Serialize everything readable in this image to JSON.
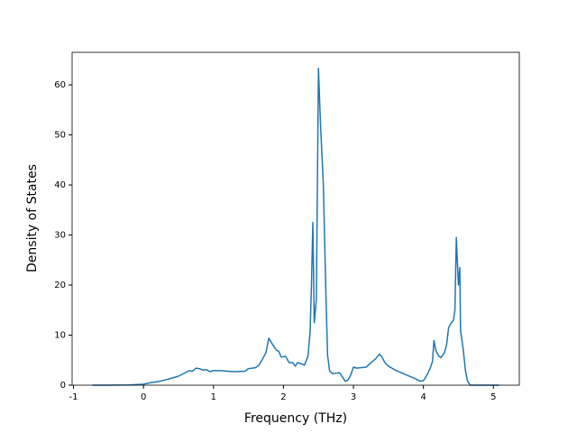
{
  "chart_data": {
    "type": "line",
    "x_label": "Frequency (THz)",
    "y_label": "Density of States",
    "xlim": [
      -1.02,
      5.37
    ],
    "ylim": [
      0,
      66.5
    ],
    "xticks": [
      -1,
      0,
      1,
      2,
      3,
      4,
      5
    ],
    "yticks": [
      0,
      10,
      20,
      30,
      40,
      50,
      60
    ],
    "grid": false,
    "series": [
      {
        "color": "#1f77b4",
        "x": [
          -0.73,
          -0.5,
          -0.2,
          0,
          0.1,
          0.2,
          0.3,
          0.4,
          0.5,
          0.6,
          0.65,
          0.7,
          0.75,
          0.8,
          0.85,
          0.9,
          0.95,
          1.0,
          1.1,
          1.2,
          1.3,
          1.45,
          1.5,
          1.6,
          1.65,
          1.7,
          1.75,
          1.79,
          1.85,
          1.9,
          1.93,
          1.97,
          2.03,
          2.08,
          2.13,
          2.17,
          2.2,
          2.25,
          2.3,
          2.35,
          2.38,
          2.4,
          2.42,
          2.44,
          2.47,
          2.5,
          2.53,
          2.57,
          2.6,
          2.63,
          2.66,
          2.7,
          2.75,
          2.8,
          2.85,
          2.88,
          2.92,
          2.96,
          3.0,
          3.05,
          3.1,
          3.18,
          3.25,
          3.32,
          3.37,
          3.4,
          3.45,
          3.5,
          3.6,
          3.7,
          3.8,
          3.9,
          3.95,
          4.0,
          4.05,
          4.1,
          4.13,
          4.15,
          4.18,
          4.22,
          4.25,
          4.3,
          4.33,
          4.36,
          4.4,
          4.43,
          4.45,
          4.47,
          4.5,
          4.52,
          4.53,
          4.57,
          4.6,
          4.63,
          4.67,
          5.08
        ],
        "values": [
          0,
          0,
          0.05,
          0.2,
          0.5,
          0.7,
          1.0,
          1.4,
          1.8,
          2.5,
          2.9,
          2.8,
          3.4,
          3.3,
          3.0,
          3.1,
          2.7,
          2.9,
          2.9,
          2.8,
          2.7,
          2.8,
          3.3,
          3.5,
          4.0,
          5.2,
          6.5,
          9.4,
          8.0,
          7.0,
          6.8,
          5.6,
          5.8,
          4.5,
          4.5,
          3.8,
          4.5,
          4.3,
          4.0,
          5.8,
          10.5,
          20,
          32.5,
          12.5,
          17,
          63.3,
          52,
          40,
          22,
          6,
          2.8,
          2.3,
          2.4,
          2.5,
          1.5,
          0.8,
          1.0,
          2.0,
          3.6,
          3.4,
          3.5,
          3.6,
          4.5,
          5.3,
          6.2,
          5.8,
          4.5,
          3.8,
          3.0,
          2.4,
          1.8,
          1.2,
          0.8,
          0.9,
          2.0,
          3.5,
          4.8,
          8.9,
          6.8,
          5.8,
          5.5,
          6.5,
          8,
          11.5,
          12.5,
          13,
          15,
          29.5,
          20,
          23.5,
          11,
          7,
          3,
          0.8,
          0,
          0
        ]
      }
    ]
  }
}
